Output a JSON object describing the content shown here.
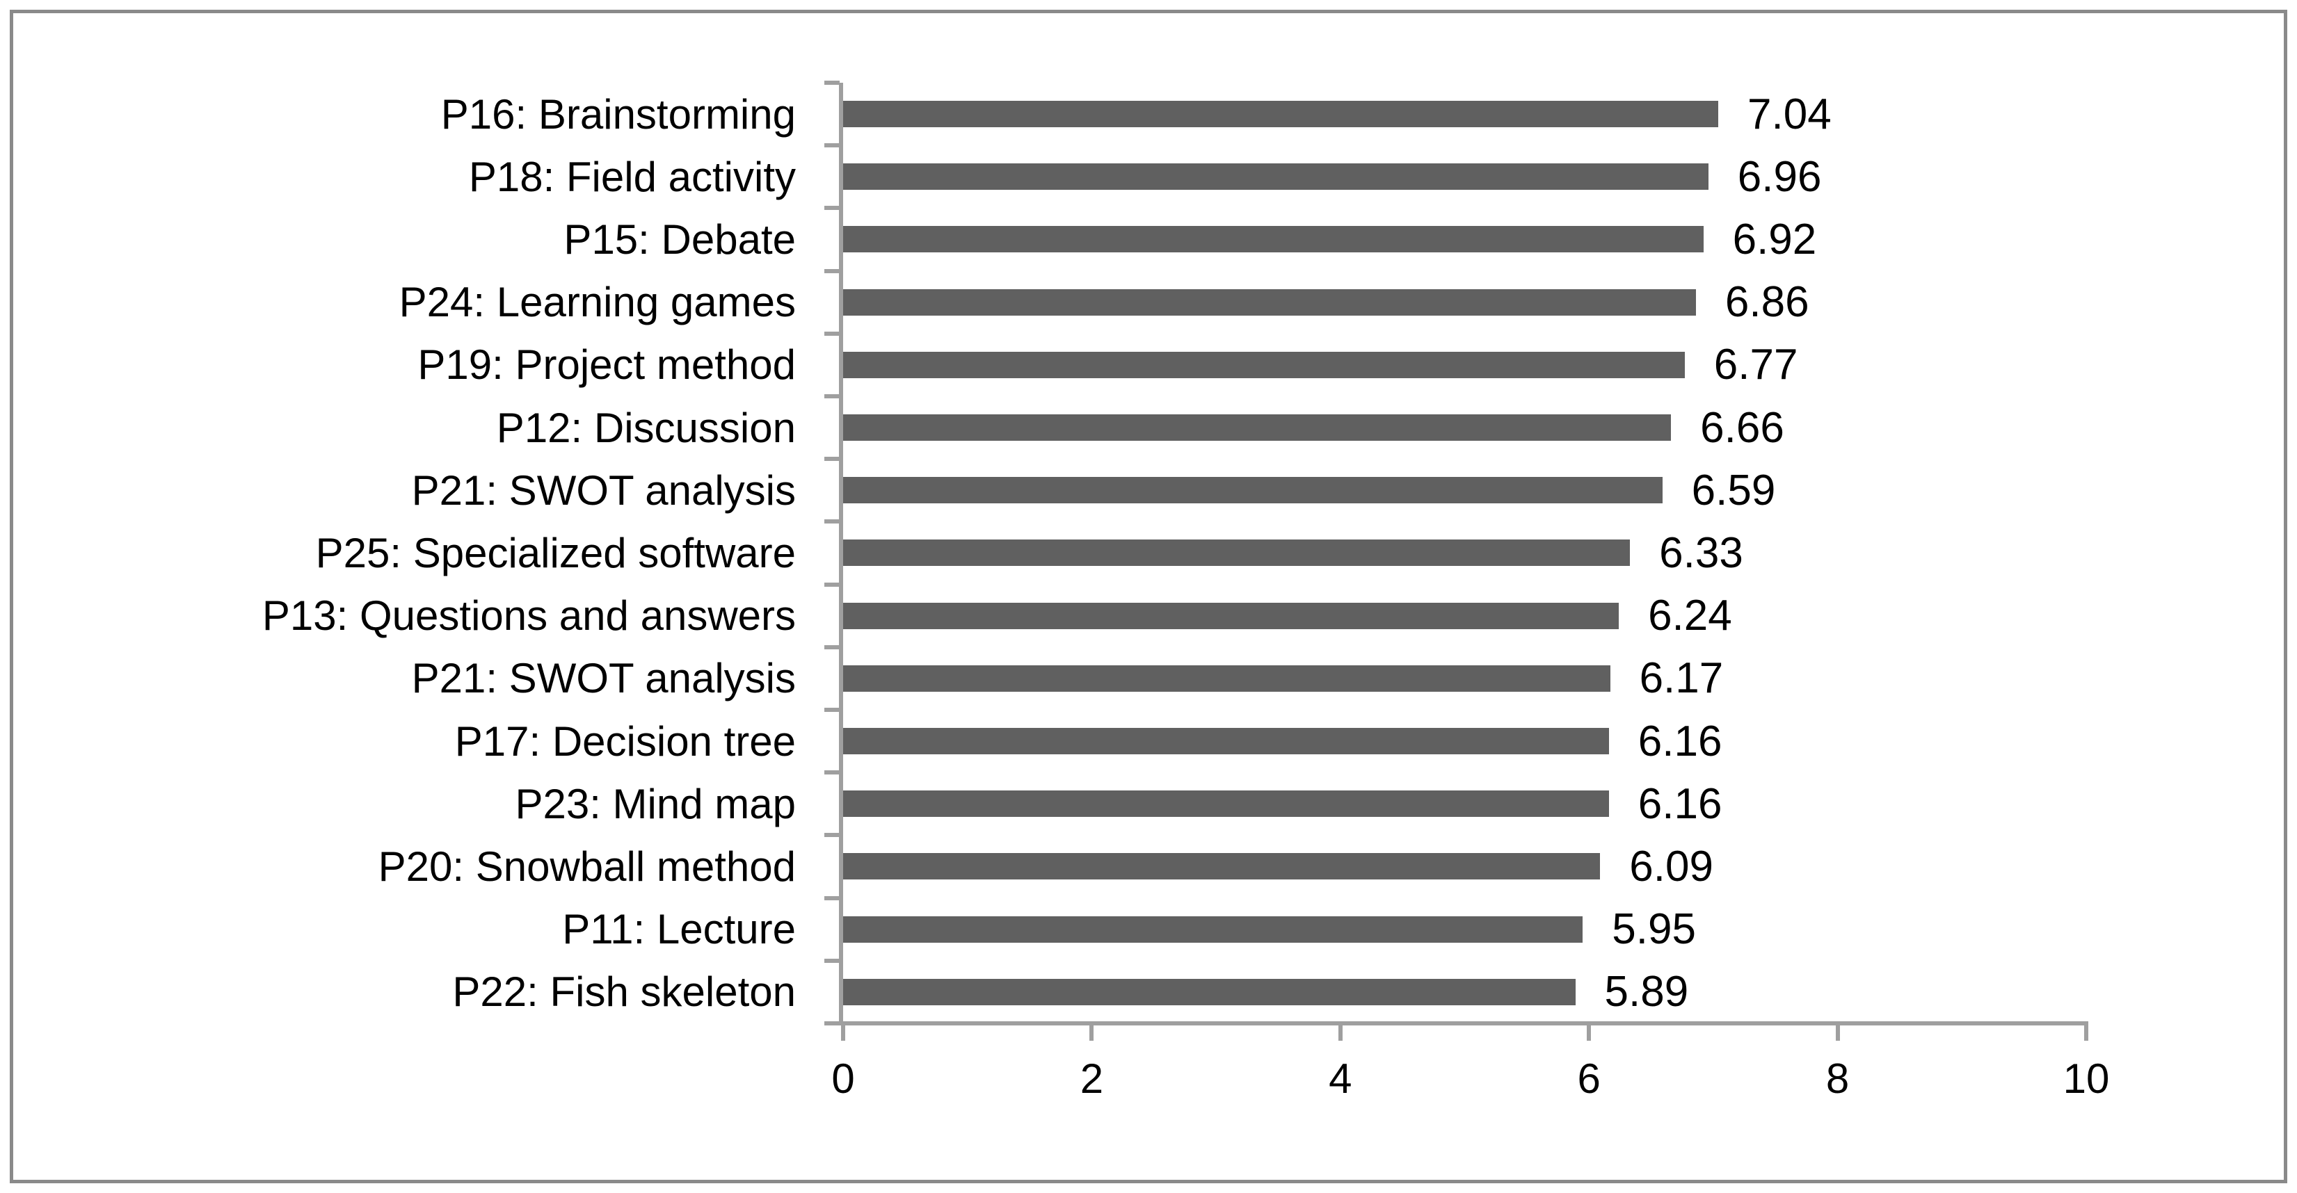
{
  "figure": {
    "background": "#ffffff",
    "border_color": "#8a8a8a"
  },
  "chart_data": {
    "type": "bar",
    "orientation": "horizontal",
    "title": "",
    "xlabel": "",
    "ylabel": "",
    "categories": [
      "P16: Brainstorming",
      "P18: Field activity",
      "P15: Debate",
      "P24: Learning games",
      "P19: Project method",
      "P12: Discussion",
      "P21: SWOT analysis",
      "P25: Specialized software",
      "P13: Questions and answers",
      "P21: SWOT analysis",
      "P17: Decision tree",
      "P23: Mind map",
      "P20: Snowball method",
      "P11: Lecture",
      "P22: Fish skeleton"
    ],
    "values": [
      7.04,
      6.96,
      6.92,
      6.86,
      6.77,
      6.66,
      6.59,
      6.33,
      6.24,
      6.17,
      6.16,
      6.16,
      6.09,
      5.95,
      5.89
    ],
    "data_labels": [
      "7.04",
      "6.96",
      "6.92",
      "6.86",
      "6.77",
      "6.66",
      "6.59",
      "6.33",
      "6.24",
      "6.17",
      "6.16",
      "6.16",
      "6.09",
      "5.95",
      "5.89"
    ],
    "xlim": [
      0,
      10
    ],
    "xticks": [
      0,
      2,
      4,
      6,
      8,
      10
    ],
    "xtick_labels": [
      "0",
      "2",
      "4",
      "6",
      "8",
      "10"
    ],
    "grid": "off",
    "legend": "none",
    "bar_color": "#606060",
    "axis_color": "#9f9f9f",
    "text_color": "#000000"
  }
}
